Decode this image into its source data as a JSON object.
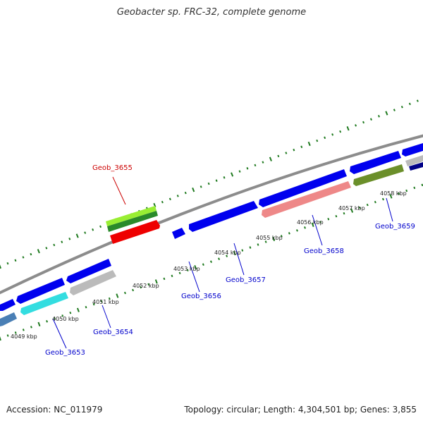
{
  "title": "Geobacter sp. FRC-32, complete genome",
  "footer": {
    "accession": "Accession: NC_011979",
    "summary": "Topology: circular; Length: 4,304,501 bp; Genes: 3,855"
  },
  "colors": {
    "backbone": "#8c8c8c",
    "tick": "#1f7a1f",
    "label_blue": "#0000cc",
    "label_red": "#cc0000"
  },
  "tick_labels": [
    "4049 kbp",
    "4050 kbp",
    "4051 kbp",
    "4052 kbp",
    "4053 kbp",
    "4054 kbp",
    "4055 kbp",
    "4056 kbp",
    "4057 kbp",
    "4058 kbp"
  ],
  "gene_labels": [
    {
      "text": "Geob_3653",
      "color": "#0000cc"
    },
    {
      "text": "Geob_3654",
      "color": "#0000cc"
    },
    {
      "text": "Geob_3655",
      "color": "#cc0000"
    },
    {
      "text": "Geob_3656",
      "color": "#0000cc"
    },
    {
      "text": "Geob_3657",
      "color": "#0000cc"
    },
    {
      "text": "Geob_3658",
      "color": "#0000cc"
    },
    {
      "text": "Geob_3659",
      "color": "#0000cc"
    }
  ],
  "features": [
    {
      "name": "gene-arrow-blue-1",
      "color": "#0000ee"
    },
    {
      "name": "gene-arrow-steelblue",
      "color": "#4a7fb5"
    },
    {
      "name": "gene-arrow-blue-2",
      "color": "#0000ee"
    },
    {
      "name": "gene-arrow-cyan",
      "color": "#33dde0"
    },
    {
      "name": "gene-arrow-blue-3",
      "color": "#0000ee"
    },
    {
      "name": "gene-arrow-gray",
      "color": "#bbbbbb"
    },
    {
      "name": "gene-arrow-lightgreen",
      "color": "#99ee33"
    },
    {
      "name": "gene-arrow-darkgreen",
      "color": "#2a8a2a"
    },
    {
      "name": "gene-arrow-red",
      "color": "#ee0000"
    },
    {
      "name": "gene-arrow-blue-small",
      "color": "#0000ee"
    },
    {
      "name": "gene-arrow-blue-4",
      "color": "#0000ee"
    },
    {
      "name": "gene-arrow-blue-5",
      "color": "#0000ee"
    },
    {
      "name": "gene-arrow-salmon",
      "color": "#ee8888"
    },
    {
      "name": "gene-arrow-blue-6",
      "color": "#0000ee"
    },
    {
      "name": "gene-arrow-olive",
      "color": "#6b8f2a"
    },
    {
      "name": "gene-arrow-blue-7",
      "color": "#0000ee"
    },
    {
      "name": "gene-arrow-silver",
      "color": "#bbbbbb"
    },
    {
      "name": "gene-arrow-navy",
      "color": "#000088"
    }
  ]
}
